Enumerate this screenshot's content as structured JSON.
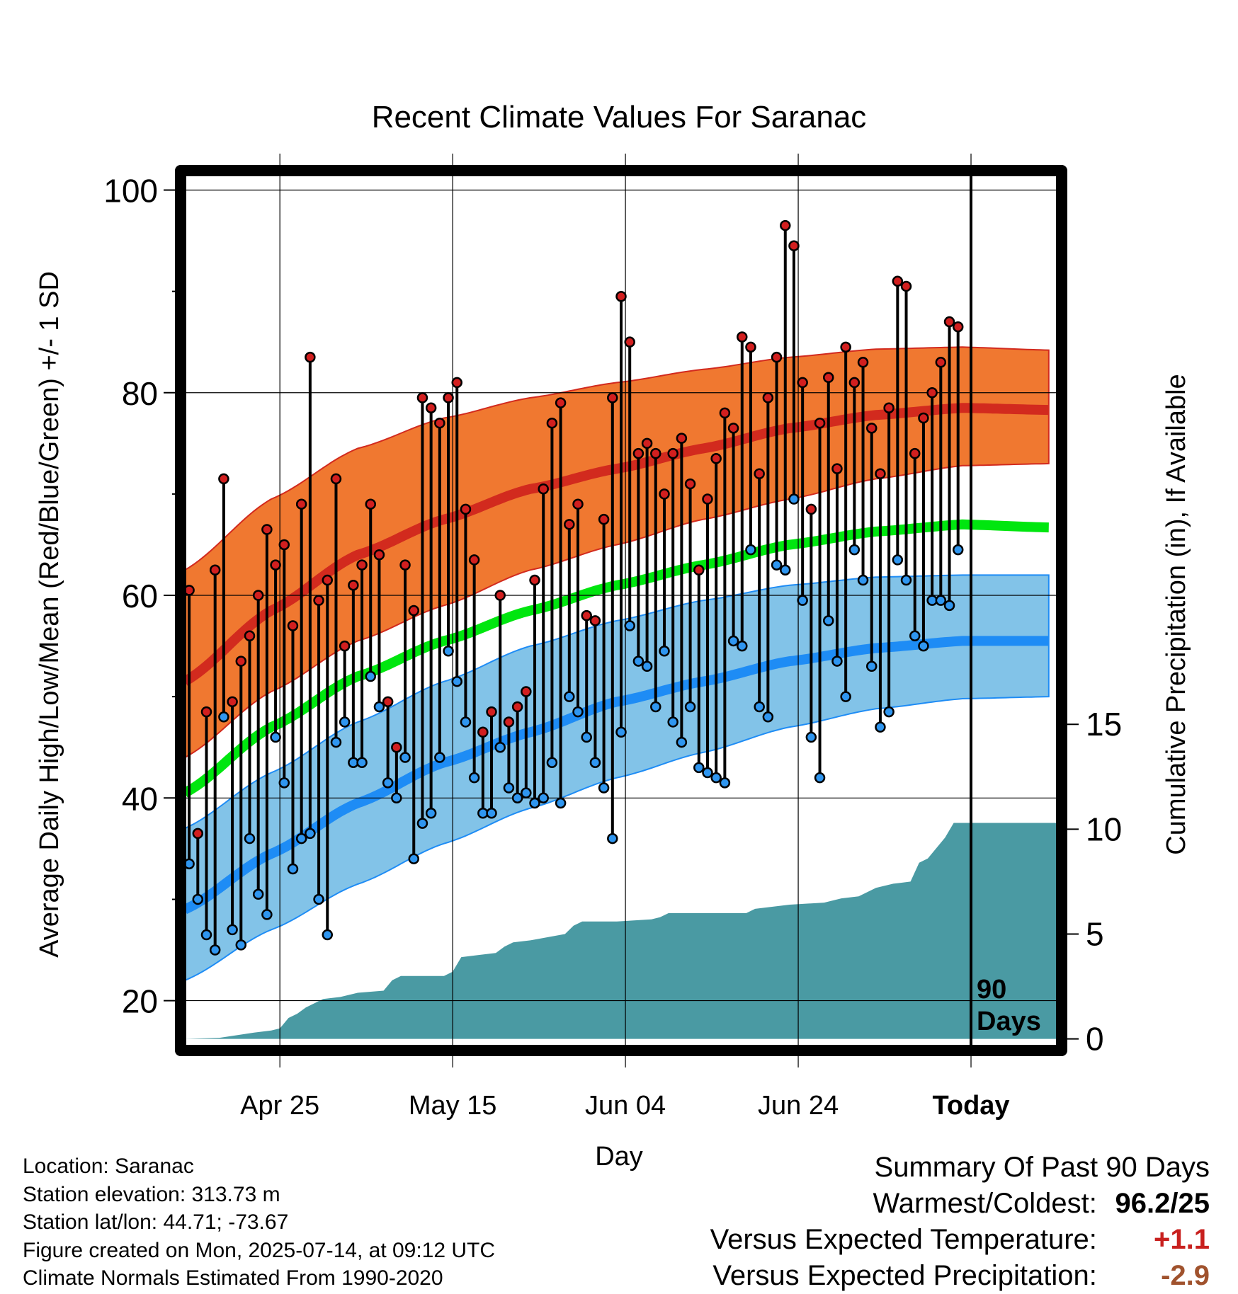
{
  "chart_data": {
    "type": "line",
    "title": "Recent Climate Values For Saranac",
    "xlabel": "Day",
    "ylabel": "Average Daily High/Low/Mean (Red/Blue/Green) +/- 1 SD",
    "y2label": "Cumulative Precipitation (in), If Available",
    "ylim": [
      15.5,
      101.5
    ],
    "y2lim": [
      -0.35,
      41.2
    ],
    "yticks": [
      20,
      40,
      60,
      80,
      100
    ],
    "y2ticks": [
      0,
      5,
      10,
      15
    ],
    "xticks": [
      {
        "day": 11,
        "label": "Apr 25"
      },
      {
        "day": 31,
        "label": "May 15"
      },
      {
        "day": 51,
        "label": "Jun 04"
      },
      {
        "day": 71,
        "label": "Jun 24"
      },
      {
        "day": 91,
        "label": "Today"
      }
    ],
    "xlim": [
      0,
      101
    ],
    "x_note": "day index from Apr 14 (day 0); Today = Jul 14 (day 91)",
    "today_marker": {
      "day": 91,
      "label_line1": "90",
      "label_line2": "Days"
    },
    "normals": {
      "days": [
        0,
        10,
        20,
        30,
        40,
        50,
        60,
        70,
        80,
        90,
        100
      ],
      "high_mean": [
        51.5,
        58.5,
        64,
        67.5,
        70.5,
        72.5,
        74.5,
        76.5,
        77.8,
        78.5,
        78.3
      ],
      "high_upper": [
        62.5,
        69.5,
        74.5,
        77.5,
        79.5,
        81,
        82.3,
        83.5,
        84.3,
        84.5,
        84.2
      ],
      "high_lower": [
        44,
        50.5,
        55.5,
        59,
        62.5,
        65,
        67.5,
        69.5,
        71.5,
        72.8,
        73
      ],
      "mean": [
        40.5,
        47,
        52,
        55.5,
        58.5,
        61,
        63,
        65,
        66.3,
        67,
        66.7
      ],
      "low_mean": [
        29,
        34.5,
        39.5,
        43.5,
        46.5,
        49.5,
        51.5,
        53.5,
        54.8,
        55.5,
        55.5
      ],
      "low_upper": [
        37,
        42.5,
        47.5,
        51.5,
        55,
        57.5,
        59.5,
        61,
        61.8,
        62,
        62
      ],
      "low_lower": [
        22,
        27,
        31.5,
        35.5,
        39,
        42,
        44.5,
        47,
        48.8,
        49.8,
        50
      ]
    },
    "series": [
      {
        "name": "High",
        "values": [
          60.5,
          36.5,
          48.5,
          62.5,
          71.5,
          49.5,
          53.5,
          56,
          60,
          66.5,
          63,
          65,
          57,
          69,
          83.5,
          59.5,
          61.5,
          71.5,
          55,
          61,
          63,
          69,
          64,
          49.5,
          45,
          63,
          58.5,
          79.5,
          78.5,
          77,
          79.5,
          81,
          68.5,
          63.5,
          46.5,
          48.5,
          60,
          47.5,
          49,
          50.5,
          61.5,
          70.5,
          77,
          79,
          67,
          69,
          58,
          57.5,
          67.5,
          79.5,
          89.5,
          85,
          74,
          75,
          74,
          70,
          74,
          75.5,
          71,
          62.5,
          69.5,
          73.5,
          78,
          76.5,
          85.5,
          84.5,
          72,
          79.5,
          83.5,
          96.5,
          94.5,
          81,
          68.5,
          77,
          81.5,
          72.5,
          84.5,
          81,
          83,
          76.5,
          72,
          78.5,
          91,
          90.5,
          74,
          77.5,
          80,
          83,
          87,
          86.5
        ]
      },
      {
        "name": "Low",
        "values": [
          33.5,
          30,
          26.5,
          25,
          48,
          27,
          25.5,
          36,
          30.5,
          28.5,
          46,
          41.5,
          33,
          36,
          36.5,
          30,
          26.5,
          45.5,
          47.5,
          43.5,
          43.5,
          52,
          49,
          41.5,
          40,
          44,
          34,
          37.5,
          38.5,
          44,
          54.5,
          51.5,
          47.5,
          42,
          38.5,
          38.5,
          45,
          41,
          40,
          40.5,
          39.5,
          40,
          43.5,
          39.5,
          50,
          48.5,
          46,
          43.5,
          41,
          36,
          46.5,
          57,
          53.5,
          53,
          49,
          54.5,
          47.5,
          45.5,
          49,
          43,
          42.5,
          42,
          41.5,
          55.5,
          55,
          64.5,
          49,
          48,
          63,
          62.5,
          69.5,
          59.5,
          46,
          42,
          57.5,
          53.5,
          50,
          64.5,
          61.5,
          53,
          47,
          48.5,
          63.5,
          61.5,
          56,
          55,
          59.5,
          59.5,
          59,
          64.5
        ]
      }
    ],
    "precip": {
      "days": [
        0,
        4,
        8,
        10,
        11,
        12,
        13,
        14,
        15,
        16,
        18,
        20,
        23,
        24,
        25,
        26,
        30,
        31,
        32,
        34,
        36,
        37,
        38,
        40,
        44,
        45,
        46,
        50,
        54,
        55,
        56,
        65,
        66,
        70,
        74,
        76,
        78,
        80,
        82,
        84,
        85,
        86,
        88,
        89,
        91,
        101
      ],
      "values": [
        0,
        0.05,
        0.3,
        0.4,
        0.5,
        1.0,
        1.2,
        1.5,
        1.7,
        1.9,
        2.0,
        2.2,
        2.3,
        2.8,
        3.0,
        3.0,
        3.0,
        3.2,
        3.9,
        4.0,
        4.1,
        4.4,
        4.6,
        4.7,
        5.0,
        5.4,
        5.6,
        5.6,
        5.7,
        5.8,
        6.0,
        6.0,
        6.2,
        6.4,
        6.5,
        6.7,
        6.8,
        7.2,
        7.4,
        7.5,
        8.4,
        8.6,
        9.6,
        10.3,
        10.3,
        10.3
      ]
    },
    "colors": {
      "high_band": "#f07830",
      "high_line": "#d22a1e",
      "mean_line": "#00e60f",
      "low_band": "#82c3e8",
      "low_line": "#1e8cf5",
      "precip_fill": "#4a9aa3",
      "high_point": "#d21f1f",
      "low_point": "#2f96f0"
    },
    "grid": true
  },
  "info": {
    "location": "Location: Saranac",
    "elevation": "Station elevation: 313.73 m",
    "latlon": "Station lat/lon: 44.71; -73.67",
    "created": "Figure created on Mon, 2025-07-14, at 09:12 UTC",
    "normals": "Climate Normals Estimated From 1990-2020"
  },
  "summary": {
    "heading": "Summary Of Past 90 Days",
    "warmest_coldest_label": "Warmest/Coldest:",
    "warmest_coldest_value": "96.2/25",
    "temp_label": "Versus Expected Temperature:",
    "temp_value": "+1.1",
    "temp_color": "#c8201e",
    "precip_label": "Versus Expected Precipitation:",
    "precip_value": "-2.9",
    "precip_color": "#a0522d"
  }
}
